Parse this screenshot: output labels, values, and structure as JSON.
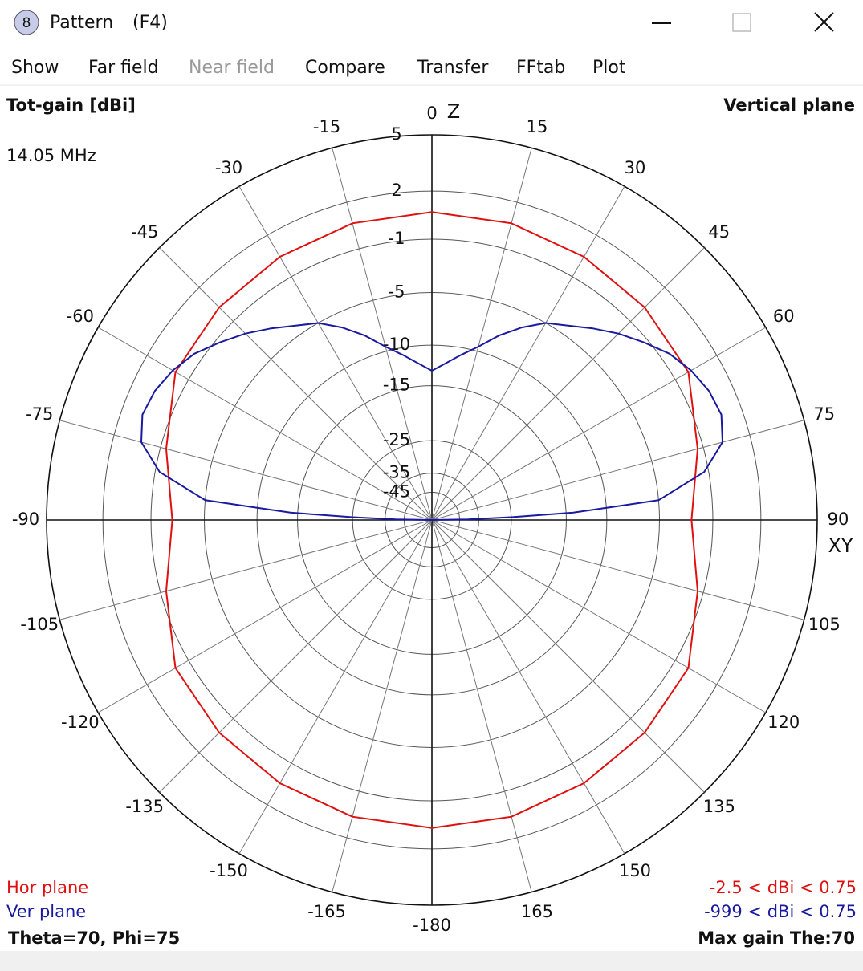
{
  "window": {
    "icon": "8",
    "title": "Pattern",
    "shortcut": "(F4)",
    "menu": [
      {
        "label": "Show",
        "enabled": true
      },
      {
        "label": "Far field",
        "enabled": true
      },
      {
        "label": "Near field",
        "enabled": false
      },
      {
        "label": "Compare",
        "enabled": true
      },
      {
        "label": "Transfer",
        "enabled": true
      },
      {
        "label": "FFtab",
        "enabled": true
      },
      {
        "label": "Plot",
        "enabled": true
      }
    ]
  },
  "chart_data": {
    "type": "polar",
    "title": "Vertical plane",
    "r_label": "Tot-gain [dBi]",
    "subtitle": "14.05 MHz",
    "z_label": "Z",
    "xy_label": "XY",
    "thetaticks": [
      0,
      15,
      30,
      45,
      60,
      75,
      90,
      105,
      120,
      135,
      150,
      165,
      -180,
      -165,
      -150,
      -135,
      -120,
      -105,
      -90,
      -75,
      -60,
      -45,
      -30,
      -15
    ],
    "rticks": [
      5,
      2,
      -1,
      -5,
      -10,
      -15,
      -25,
      -35,
      -45
    ],
    "series": [
      {
        "name": "Hor plane",
        "color": "#e01010",
        "range": "-2.5 < dBi < 0.75",
        "theta": [
          -180,
          -165,
          -150,
          -135,
          -120,
          -105,
          -90,
          -75,
          -60,
          -45,
          -30,
          -15,
          0,
          15,
          30,
          45,
          60,
          75,
          90,
          105,
          120,
          135,
          150,
          165
        ],
        "values": [
          0.75,
          0.7,
          0.5,
          0.3,
          0.0,
          -1.4,
          -2.5,
          -1.4,
          0.0,
          0.3,
          0.5,
          0.7,
          0.75,
          0.7,
          0.5,
          0.3,
          0.0,
          -1.4,
          -2.5,
          -1.4,
          0.0,
          0.3,
          0.5,
          0.7
        ]
      },
      {
        "name": "Ver plane",
        "color": "#1a1aa0",
        "range": "-999 < dBi < 0.75",
        "theta": [
          -90,
          -89,
          -88,
          -87,
          -85,
          -80,
          -75,
          -70,
          -65,
          -60,
          -55,
          -50,
          -45,
          -40,
          -35,
          -30,
          -25,
          -20,
          -15,
          -10,
          -5,
          0,
          5,
          10,
          15,
          20,
          25,
          30,
          35,
          40,
          45,
          50,
          55,
          60,
          65,
          70,
          75,
          80,
          85,
          87,
          88,
          89,
          90
        ],
        "values": [
          -999,
          -40,
          -25,
          -14,
          -5,
          -1.3,
          0.3,
          0.75,
          0.6,
          0.2,
          -0.4,
          -1.3,
          -2.2,
          -3.2,
          -4.2,
          -5,
          -6.3,
          -7.8,
          -9.5,
          -10.8,
          -12,
          -13,
          -12,
          -10.8,
          -9.5,
          -7.8,
          -6.3,
          -5,
          -4.2,
          -3.2,
          -2.2,
          -1.3,
          -0.4,
          0.2,
          0.6,
          0.75,
          0.3,
          -1.3,
          -5,
          -14,
          -25,
          -40,
          -999
        ]
      }
    ],
    "annotations": [
      "Theta=70, Phi=75",
      "Max gain The:70"
    ]
  }
}
